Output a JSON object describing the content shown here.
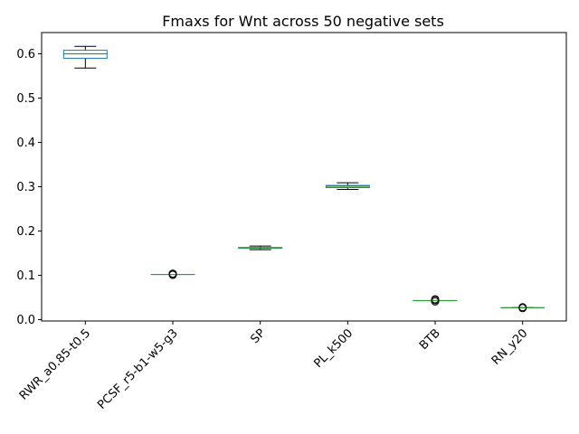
{
  "chart_data": {
    "type": "box",
    "title": "Fmaxs for Wnt across 50 negative sets",
    "xlabel": "",
    "ylabel": "",
    "ylim": [
      -0.003,
      0.648
    ],
    "yticks": [
      0.0,
      0.1,
      0.2,
      0.3,
      0.4,
      0.5,
      0.6
    ],
    "ytick_labels": [
      "0.0",
      "0.1",
      "0.2",
      "0.3",
      "0.4",
      "0.5",
      "0.6"
    ],
    "grid": false,
    "colors": {
      "box": "#1f77b4",
      "median": "#2ca02c",
      "whisker": "#000000",
      "flier": "#000000"
    },
    "categories": [
      "RWR_a0.85-t0.5",
      "PCSF_r5-b1-w5-g3",
      "SP",
      "PL_k500",
      "BTB",
      "RN_y20"
    ],
    "boxes": [
      {
        "label": "RWR_a0.85-t0.5",
        "whisker_low": 0.568,
        "q1": 0.59,
        "median": 0.6,
        "q3": 0.608,
        "whisker_high": 0.617,
        "fliers": []
      },
      {
        "label": "PCSF_r5-b1-w5-g3",
        "whisker_low": 0.102,
        "q1": 0.102,
        "median": 0.102,
        "q3": 0.102,
        "whisker_high": 0.102,
        "fliers": [
          0.101,
          0.103,
          0.104
        ]
      },
      {
        "label": "SP",
        "whisker_low": 0.158,
        "q1": 0.161,
        "median": 0.162,
        "q3": 0.163,
        "whisker_high": 0.166,
        "fliers": []
      },
      {
        "label": "PL_k500",
        "whisker_low": 0.294,
        "q1": 0.298,
        "median": 0.301,
        "q3": 0.303,
        "whisker_high": 0.309,
        "fliers": []
      },
      {
        "label": "BTB",
        "whisker_low": 0.043,
        "q1": 0.043,
        "median": 0.043,
        "q3": 0.043,
        "whisker_high": 0.043,
        "fliers": [
          0.041,
          0.044,
          0.046
        ]
      },
      {
        "label": "RN_y20",
        "whisker_low": 0.027,
        "q1": 0.027,
        "median": 0.027,
        "q3": 0.027,
        "whisker_high": 0.027,
        "fliers": [
          0.026,
          0.028
        ]
      }
    ]
  }
}
